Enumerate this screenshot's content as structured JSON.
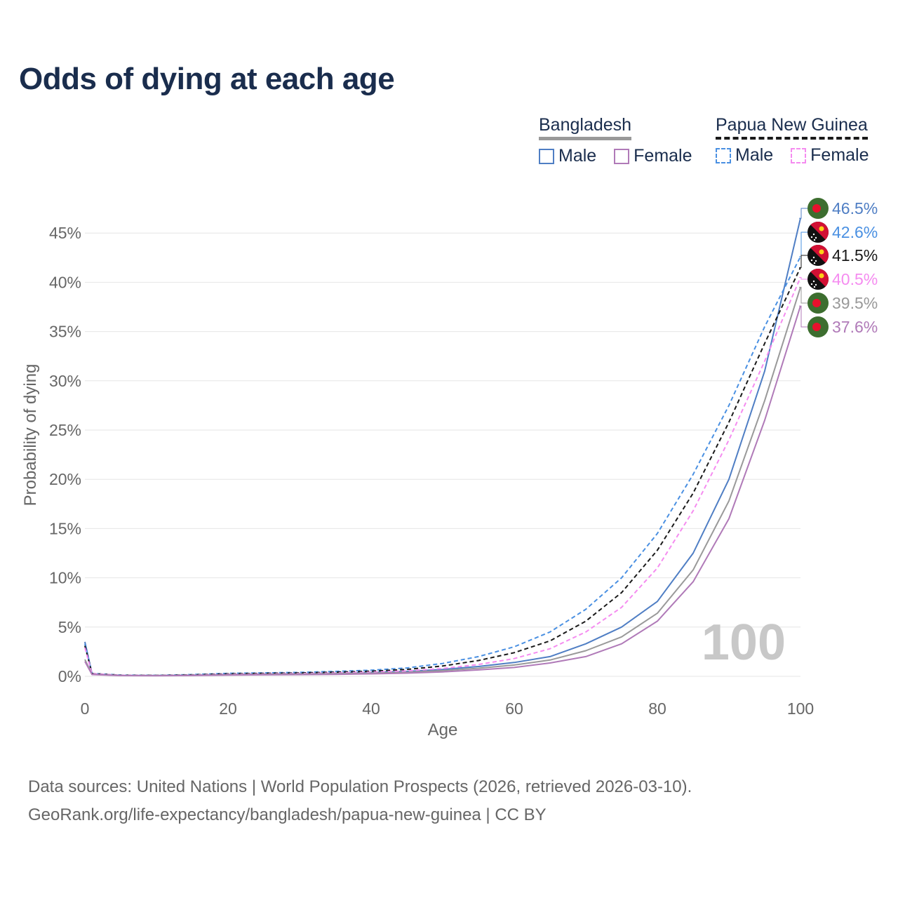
{
  "title": "Odds of dying at each age",
  "legend": {
    "groups": [
      {
        "name": "Bangladesh",
        "items": [
          "Male",
          "Female"
        ]
      },
      {
        "name": "Papua New Guinea",
        "items": [
          "Male",
          "Female"
        ]
      }
    ]
  },
  "colors": {
    "bd_male": "#4f7ec4",
    "bd_female": "#b07ab8",
    "bd_total": "#999999",
    "png_male": "#4a90e2",
    "png_female": "#f58cf0",
    "png_total": "#1a1a1a",
    "title": "#1a2d4d",
    "grid": "#e6e6e6",
    "axis_text": "#666666",
    "watermark": "#c8c8c8"
  },
  "chart_data": {
    "type": "line",
    "xlabel": "Age",
    "ylabel": "Probability of dying",
    "xlim": [
      0,
      100
    ],
    "ylim": [
      0,
      47
    ],
    "x_ticks": [
      "0",
      "20",
      "40",
      "60",
      "80",
      "100"
    ],
    "y_ticks": [
      "0%",
      "5%",
      "10%",
      "15%",
      "20%",
      "25%",
      "30%",
      "35%",
      "40%",
      "45%"
    ],
    "age_marker": "100",
    "x": [
      0,
      1,
      5,
      10,
      15,
      20,
      25,
      30,
      35,
      40,
      45,
      50,
      55,
      60,
      65,
      70,
      75,
      80,
      85,
      90,
      95,
      100
    ],
    "series": [
      {
        "name": "Bangladesh Male",
        "country": "Bangladesh",
        "sex": "Male",
        "style": "solid",
        "color_key": "bd_male",
        "values": [
          3.5,
          0.25,
          0.1,
          0.08,
          0.12,
          0.2,
          0.25,
          0.28,
          0.32,
          0.4,
          0.5,
          0.7,
          1.0,
          1.4,
          2.0,
          3.3,
          5.0,
          7.6,
          12.5,
          20.0,
          31.0,
          46.5
        ],
        "end_label": "46.5%"
      },
      {
        "name": "Papua New Guinea Male",
        "country": "Papua New Guinea",
        "sex": "Male",
        "style": "dashed",
        "color_key": "png_male",
        "values": [
          3.3,
          0.3,
          0.12,
          0.1,
          0.18,
          0.3,
          0.35,
          0.4,
          0.5,
          0.62,
          0.85,
          1.3,
          2.0,
          3.0,
          4.5,
          6.8,
          10.0,
          14.5,
          20.5,
          27.5,
          35.5,
          42.6
        ],
        "end_label": "42.6%"
      },
      {
        "name": "Papua New Guinea",
        "country": "Papua New Guinea",
        "sex": "Total",
        "style": "dashed",
        "color_key": "png_total",
        "values": [
          3.1,
          0.28,
          0.11,
          0.09,
          0.15,
          0.25,
          0.3,
          0.34,
          0.42,
          0.52,
          0.7,
          1.05,
          1.6,
          2.4,
          3.6,
          5.6,
          8.5,
          12.8,
          18.6,
          25.8,
          33.8,
          41.5
        ],
        "end_label": "41.5%"
      },
      {
        "name": "Papua New Guinea Female",
        "country": "Papua New Guinea",
        "sex": "Female",
        "style": "dashed",
        "color_key": "png_female",
        "values": [
          2.9,
          0.26,
          0.1,
          0.08,
          0.12,
          0.2,
          0.24,
          0.28,
          0.34,
          0.42,
          0.55,
          0.8,
          1.2,
          1.8,
          2.8,
          4.5,
          7.0,
          11.0,
          16.8,
          24.0,
          32.0,
          40.5
        ],
        "end_label": "40.5%"
      },
      {
        "name": "Bangladesh",
        "country": "Bangladesh",
        "sex": "Total",
        "style": "solid",
        "color_key": "bd_total",
        "values": [
          1.7,
          0.2,
          0.08,
          0.07,
          0.1,
          0.16,
          0.2,
          0.22,
          0.26,
          0.32,
          0.4,
          0.58,
          0.82,
          1.15,
          1.65,
          2.6,
          4.0,
          6.4,
          10.8,
          17.8,
          28.0,
          39.5
        ],
        "end_label": "39.5%"
      },
      {
        "name": "Bangladesh Female",
        "country": "Bangladesh",
        "sex": "Female",
        "style": "solid",
        "color_key": "bd_female",
        "values": [
          1.5,
          0.18,
          0.07,
          0.06,
          0.08,
          0.12,
          0.15,
          0.17,
          0.2,
          0.25,
          0.32,
          0.45,
          0.65,
          0.9,
          1.35,
          2.0,
          3.3,
          5.6,
          9.6,
          16.0,
          26.0,
          37.6
        ],
        "end_label": "37.6%"
      }
    ]
  },
  "footer": {
    "line1": "Data sources: United Nations | World Population Prospects (2026, retrieved 2026-03-10).",
    "line2": "GeoRank.org/life-expectancy/bangladesh/papua-new-guinea | CC BY"
  }
}
